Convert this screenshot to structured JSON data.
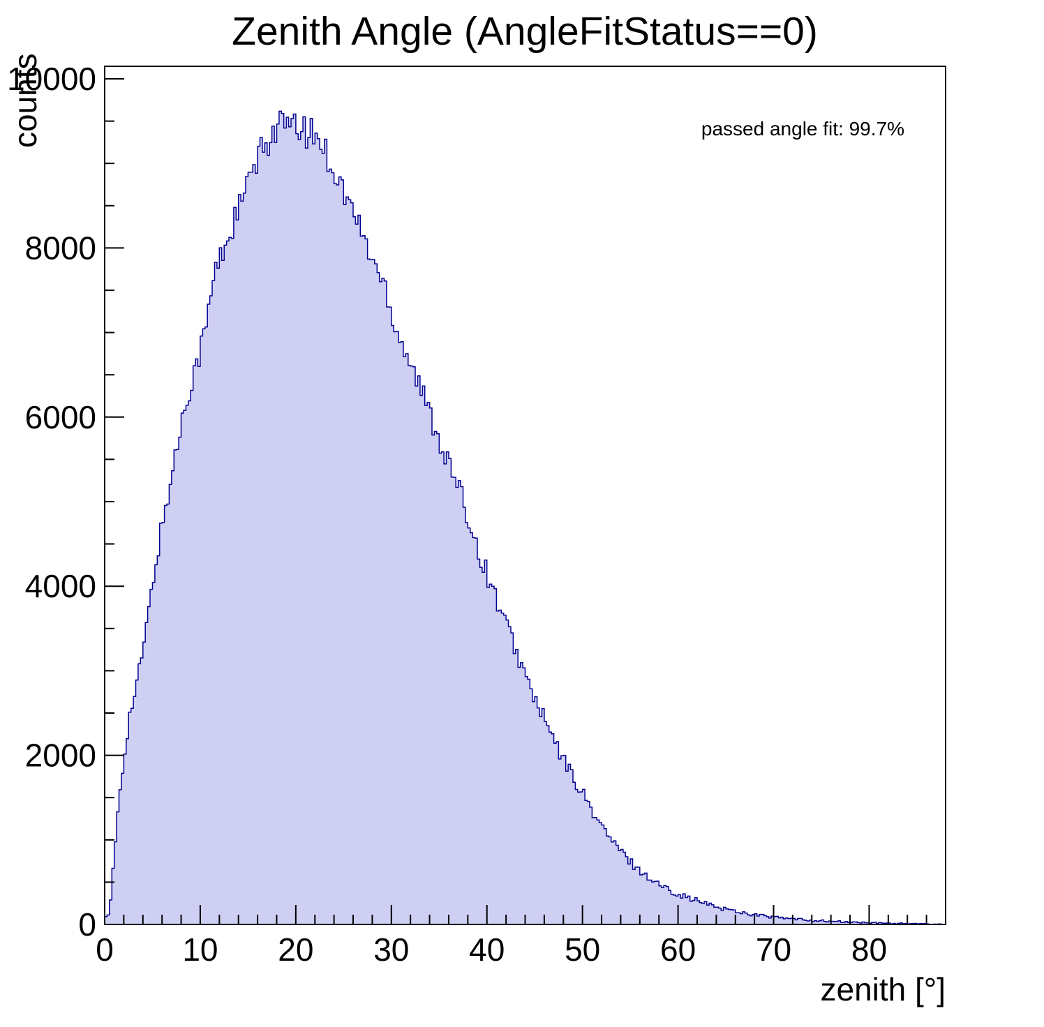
{
  "chart_data": {
    "type": "bar",
    "title": "Zenith Angle (AngleFitStatus==0)",
    "xlabel": "zenith [°]",
    "ylabel": "counts",
    "annotation": "passed angle fit: 99.7%",
    "xlim": [
      0,
      88
    ],
    "ylim": [
      0,
      10000
    ],
    "x_ticks": [
      0,
      10,
      20,
      30,
      40,
      50,
      60,
      70,
      80
    ],
    "x_minor_step": 2,
    "y_ticks": [
      0,
      2000,
      4000,
      6000,
      8000,
      10000
    ],
    "y_minor_step": 500,
    "legend_position": "none",
    "grid": false,
    "bin_width": 1,
    "x_start": 0,
    "values": [
      100,
      1500,
      2400,
      2900,
      3600,
      4400,
      5000,
      5600,
      6200,
      6600,
      7000,
      7700,
      8000,
      8300,
      8600,
      8900,
      9150,
      9350,
      9500,
      9400,
      9400,
      9350,
      9300,
      9050,
      8800,
      8550,
      8300,
      8000,
      7750,
      7500,
      7050,
      6800,
      6500,
      6200,
      5900,
      5600,
      5300,
      5000,
      4650,
      4300,
      4000,
      3700,
      3400,
      3100,
      2800,
      2550,
      2300,
      2050,
      1850,
      1650,
      1450,
      1250,
      1080,
      930,
      800,
      690,
      590,
      510,
      440,
      390,
      340,
      300,
      260,
      225,
      195,
      170,
      145,
      125,
      108,
      93,
      80,
      69,
      60,
      52,
      45,
      39,
      34,
      29,
      25,
      21,
      18,
      15,
      13,
      11,
      9,
      7,
      5,
      4
    ],
    "colors": {
      "hist_fill": "#cfcff4",
      "hist_line": "#00008f",
      "frame": "#000000",
      "text": "#000000",
      "background": "#ffffff"
    }
  }
}
